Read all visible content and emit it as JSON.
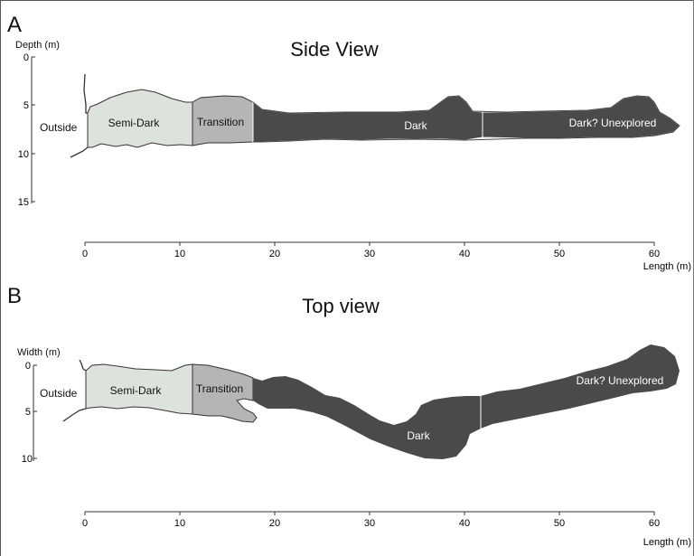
{
  "panel_a": {
    "letter": "A",
    "title": "Side View",
    "y_axis_label": "Depth (m)",
    "y_ticks": [
      "0",
      "5",
      "10",
      "15"
    ],
    "x_ticks": [
      "0",
      "10",
      "20",
      "30",
      "40",
      "50",
      "60"
    ],
    "x_axis_label": "Length (m)",
    "zones": {
      "outside": "Outside",
      "semi_dark": "Semi-Dark",
      "transition": "Transition",
      "dark": "Dark",
      "unexplored": "Dark? Unexplored"
    }
  },
  "panel_b": {
    "letter": "B",
    "title": "Top view",
    "y_axis_label": "Width (m)",
    "y_ticks": [
      "0",
      "5",
      "10"
    ],
    "x_ticks": [
      "0",
      "10",
      "20",
      "30",
      "40",
      "50",
      "60"
    ],
    "x_axis_label": "Length (m)",
    "zones": {
      "outside": "Outside",
      "semi_dark": "Semi-Dark",
      "transition": "Transition",
      "dark": "Dark",
      "unexplored": "Dark? Unexplored"
    }
  },
  "colors": {
    "semi_dark_fill": "#dde2df",
    "transition_fill": "#b5b5b5",
    "dark_fill": "#4a4a4a",
    "outline": "#333333",
    "text_dark": "#111111",
    "text_light": "#ffffff"
  }
}
